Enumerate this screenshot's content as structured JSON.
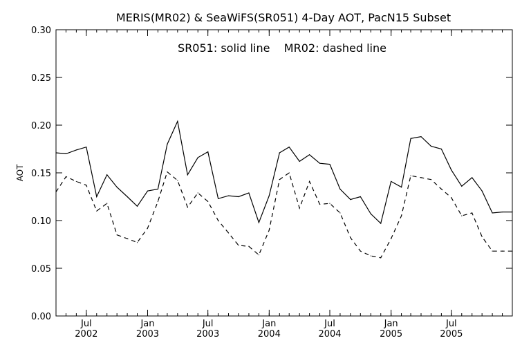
{
  "chart_data": {
    "type": "line",
    "title": "MERIS(MR02) & SeaWiFS(SR051) 4-Day AOT, PacN15 Subset",
    "annotation": "SR051: solid line    MR02: dashed line",
    "ylabel": "AOT",
    "xlabel": "",
    "ylim": [
      0.0,
      0.3
    ],
    "yticks": [
      "0.00",
      "0.05",
      "0.10",
      "0.15",
      "0.20",
      "0.25",
      "0.30"
    ],
    "xlim": [
      "2002-04-01",
      "2005-12-31"
    ],
    "xticks": [
      {
        "date": "2002-07-01",
        "month": "Jul",
        "year": "2002"
      },
      {
        "date": "2003-01-01",
        "month": "Jan",
        "year": "2003"
      },
      {
        "date": "2003-07-01",
        "month": "Jul",
        "year": "2003"
      },
      {
        "date": "2004-01-01",
        "month": "Jan",
        "year": "2004"
      },
      {
        "date": "2004-07-01",
        "month": "Jul",
        "year": "2004"
      },
      {
        "date": "2005-01-01",
        "month": "Jan",
        "year": "2005"
      },
      {
        "date": "2005-07-01",
        "month": "Jul",
        "year": "2005"
      }
    ],
    "grid": false,
    "legend": "none",
    "series": [
      {
        "style": "solid",
        "x": [
          "2002-04-01",
          "2002-05-01",
          "2002-06-01",
          "2002-07-01",
          "2002-08-01",
          "2002-09-01",
          "2002-10-01",
          "2002-11-01",
          "2002-12-01",
          "2003-01-01",
          "2003-02-01",
          "2003-03-01",
          "2003-04-01",
          "2003-05-01",
          "2003-06-01",
          "2003-07-01",
          "2003-08-01",
          "2003-09-01",
          "2003-10-01",
          "2003-11-01",
          "2003-12-01",
          "2004-01-01",
          "2004-02-01",
          "2004-03-01",
          "2004-04-01",
          "2004-05-01",
          "2004-06-01",
          "2004-07-01",
          "2004-08-01",
          "2004-09-01",
          "2004-10-01",
          "2004-11-01",
          "2004-12-01",
          "2005-01-01",
          "2005-02-01",
          "2005-03-01",
          "2005-04-01",
          "2005-05-01",
          "2005-06-01",
          "2005-07-01",
          "2005-08-01",
          "2005-09-01",
          "2005-10-01",
          "2005-11-01",
          "2005-12-01",
          "2005-12-31"
        ],
        "values": [
          0.171,
          0.17,
          0.174,
          0.177,
          0.125,
          0.148,
          0.135,
          0.125,
          0.115,
          0.131,
          0.133,
          0.18,
          0.204,
          0.148,
          0.166,
          0.172,
          0.123,
          0.126,
          0.125,
          0.129,
          0.098,
          0.126,
          0.171,
          0.177,
          0.162,
          0.169,
          0.16,
          0.159,
          0.133,
          0.122,
          0.125,
          0.107,
          0.097,
          0.141,
          0.135,
          0.186,
          0.188,
          0.178,
          0.175,
          0.153,
          0.136,
          0.145,
          0.131,
          0.108,
          0.109,
          0.109
        ]
      },
      {
        "style": "dashed",
        "x": [
          "2002-04-01",
          "2002-05-01",
          "2002-06-01",
          "2002-07-01",
          "2002-08-01",
          "2002-09-01",
          "2002-10-01",
          "2002-11-01",
          "2002-12-01",
          "2003-01-01",
          "2003-02-01",
          "2003-03-01",
          "2003-04-01",
          "2003-05-01",
          "2003-06-01",
          "2003-07-01",
          "2003-08-01",
          "2003-09-01",
          "2003-10-01",
          "2003-11-01",
          "2003-12-01",
          "2004-01-01",
          "2004-02-01",
          "2004-03-01",
          "2004-04-01",
          "2004-05-01",
          "2004-06-01",
          "2004-07-01",
          "2004-08-01",
          "2004-09-01",
          "2004-10-01",
          "2004-11-01",
          "2004-12-01",
          "2005-01-01",
          "2005-02-01",
          "2005-03-01",
          "2005-04-01",
          "2005-05-01",
          "2005-06-01",
          "2005-07-01",
          "2005-08-01",
          "2005-09-01",
          "2005-10-01",
          "2005-11-01",
          "2005-12-01",
          "2005-12-31"
        ],
        "values": [
          0.13,
          0.146,
          0.141,
          0.137,
          0.11,
          0.118,
          0.085,
          0.081,
          0.077,
          0.092,
          0.12,
          0.151,
          0.142,
          0.114,
          0.129,
          0.12,
          0.1,
          0.087,
          0.074,
          0.073,
          0.064,
          0.09,
          0.143,
          0.15,
          0.113,
          0.141,
          0.117,
          0.118,
          0.108,
          0.082,
          0.068,
          0.063,
          0.061,
          0.081,
          0.105,
          0.147,
          0.145,
          0.143,
          0.133,
          0.124,
          0.105,
          0.108,
          0.083,
          0.068,
          0.068,
          0.068
        ]
      }
    ]
  }
}
